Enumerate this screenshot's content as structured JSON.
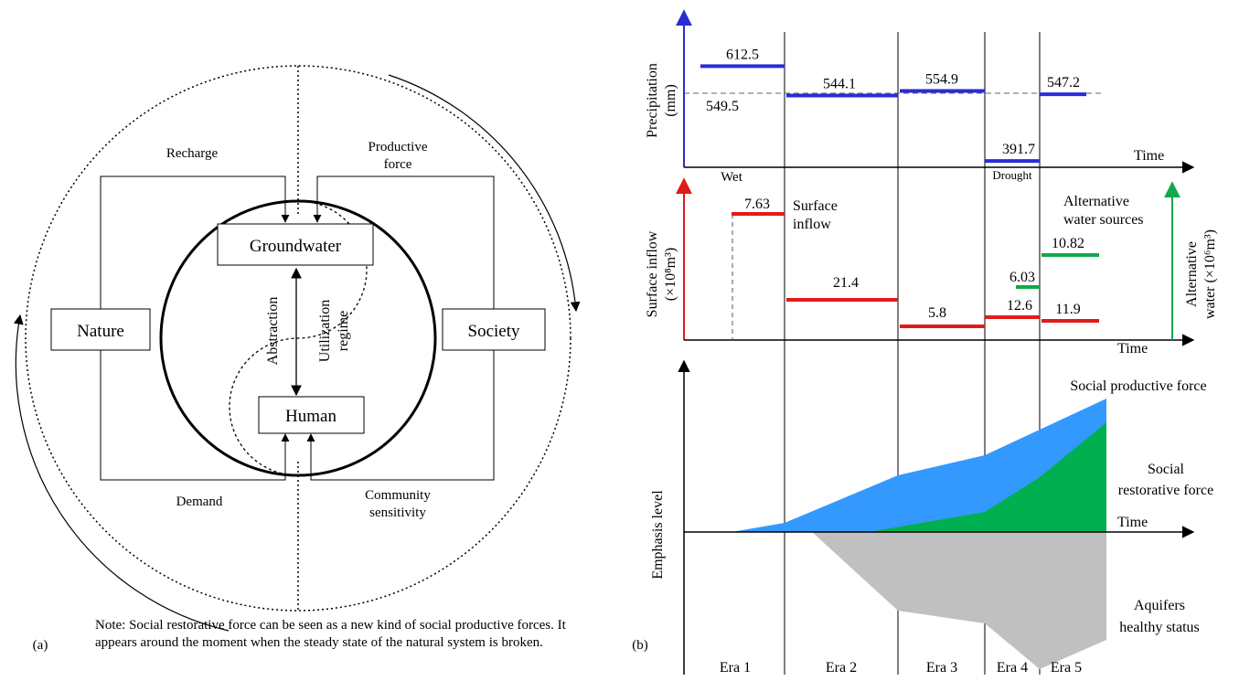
{
  "panel_a": {
    "label": "(a)",
    "boxes": {
      "groundwater": "Groundwater",
      "human": "Human",
      "nature": "Nature",
      "society": "Society"
    },
    "flows": {
      "recharge": "Recharge",
      "productive_force_1": "Productive",
      "productive_force_2": "force",
      "demand": "Demand",
      "community_1": "Community",
      "community_2": "sensitivity",
      "abstraction": "Abstraction",
      "utilization_1": "Utilization",
      "utilization_2": "regime"
    },
    "note": "Note: Social restorative force can be seen as a new kind of social productive forces. It appears around the moment when the steady state of the natural system is broken."
  },
  "panel_b": {
    "label": "(b)",
    "time_label": "Time",
    "eras": [
      "Era 1",
      "Era 2",
      "Era 3",
      "Era 4",
      "Era 5"
    ],
    "precip_axis": [
      "Precipitation",
      "(mm)"
    ],
    "inflow_axis": [
      "Surface inflow",
      "(×10⁸m³)"
    ],
    "alt_axis": [
      "Alternative",
      "water (×10⁶m³)"
    ],
    "emphasis_axis": "Emphasis level",
    "wet_label": "Wet",
    "drought_label": "Drought",
    "precip_mean_label": "549.5",
    "surface_inflow_label": [
      "Surface",
      "inflow"
    ],
    "alt_sources_label": [
      "Alternative",
      "water sources"
    ],
    "social_productive_label": "Social productive force",
    "social_restorative_label": [
      "Social",
      "restorative force"
    ],
    "aquifer_label": [
      "Aquifers",
      "healthy status"
    ],
    "colors": {
      "precipitation": "#2b2bd6",
      "surface_inflow": "#e01b1b",
      "alternative": "#12a84b",
      "productive_area": "#3399ff",
      "restorative_area": "#00b050",
      "aquifer_area": "#c0c0c0"
    }
  },
  "chart_data": [
    {
      "type": "line",
      "name_hint": "precipitation",
      "categories": [
        "Era 1",
        "Era 2",
        "Era 3",
        "Era 4",
        "Era 5"
      ],
      "values": [
        612.5,
        544.1,
        554.9,
        391.7,
        547.2
      ],
      "value_labels": [
        "612.5",
        "544.1",
        "554.9",
        "391.7",
        "547.2"
      ],
      "reference_line": 549.5
    },
    {
      "type": "line",
      "name_hint": "surface_inflow",
      "categories": [
        "Era 1",
        "Era 2",
        "Era 3",
        "Era 4",
        "Era 5"
      ],
      "values": [
        7.63,
        21.4,
        5.8,
        12.6,
        11.9
      ],
      "value_labels": [
        "7.63",
        "21.4",
        "5.8",
        "12.6",
        "11.9"
      ]
    },
    {
      "type": "line",
      "name_hint": "alternative_water",
      "categories": [
        "Era 4",
        "Era 5"
      ],
      "values": [
        6.03,
        10.82
      ],
      "value_labels": [
        "6.03",
        "10.82"
      ]
    }
  ]
}
